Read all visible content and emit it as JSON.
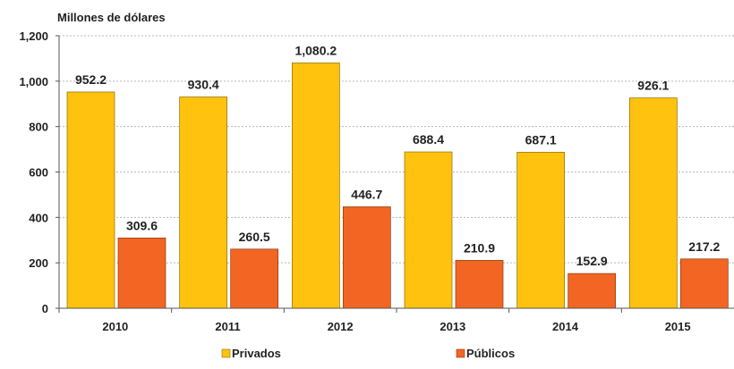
{
  "chart_data": {
    "type": "bar",
    "title": "Millones de dólares",
    "xlabel": "",
    "ylabel": "",
    "categories": [
      "2010",
      "2011",
      "2012",
      "2013",
      "2014",
      "2015"
    ],
    "series": [
      {
        "name": "Privados",
        "color": "#FFC20E",
        "values": [
          952.2,
          930.4,
          1080.2,
          688.4,
          687.1,
          926.1
        ],
        "labels": [
          "952.2",
          "930.4",
          "1,080.2",
          "688.4",
          "687.1",
          "926.1"
        ]
      },
      {
        "name": "Públicos",
        "color": "#F26522",
        "values": [
          309.6,
          260.5,
          446.7,
          210.9,
          152.9,
          217.2
        ],
        "labels": [
          "309.6",
          "260.5",
          "446.7",
          "210.9",
          "152.9",
          "217.2"
        ]
      }
    ],
    "ylim": [
      0,
      1200
    ],
    "yticks": [
      0,
      200,
      400,
      600,
      800,
      1000,
      1200
    ],
    "ytick_labels": [
      "0",
      "200",
      "400",
      "600",
      "800",
      "1,000",
      "1,200"
    ],
    "grid": true,
    "legend_position": "bottom"
  }
}
